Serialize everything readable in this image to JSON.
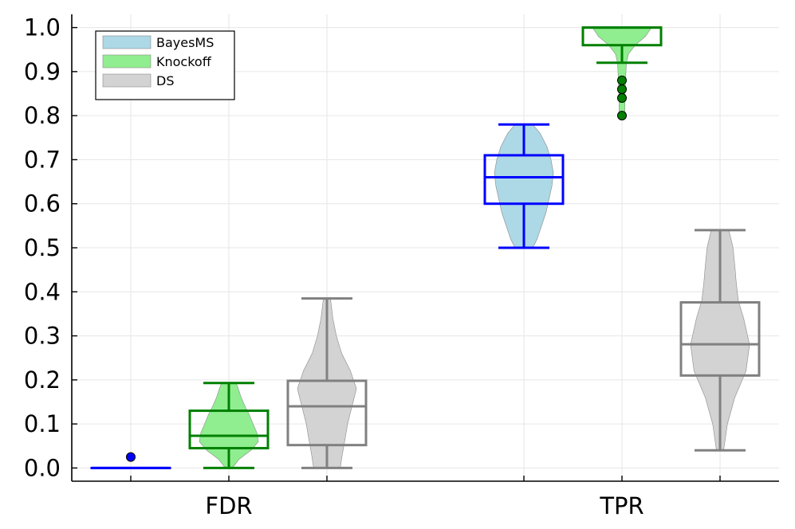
{
  "chart_data": {
    "type": "box-violin",
    "title": "",
    "xlabel": "",
    "ylabel": "",
    "categories": [
      "FDR",
      "TPR"
    ],
    "ylim": [
      -0.03,
      1.03
    ],
    "yticks": [
      "0.0",
      "0.1",
      "0.2",
      "0.3",
      "0.4",
      "0.5",
      "0.6",
      "0.7",
      "0.8",
      "0.9",
      "1.0"
    ],
    "grid": true,
    "legend_position": "top-left",
    "series": [
      {
        "name": "BayesMS",
        "fill_color": "#add8e6",
        "box_color": "#0000ff",
        "groups": [
          {
            "category": "FDR",
            "min": 0.0,
            "q1": 0.0,
            "median": 0.0,
            "q3": 0.0,
            "max": 0.0,
            "outliers": [
              0.025
            ],
            "violin": [
              [
                0.0,
                0.0
              ]
            ]
          },
          {
            "category": "TPR",
            "min": 0.5,
            "q1": 0.6,
            "median": 0.66,
            "q3": 0.71,
            "max": 0.78,
            "outliers": [],
            "violin": [
              [
                0.5,
                0.3
              ],
              [
                0.52,
                0.45
              ],
              [
                0.55,
                0.6
              ],
              [
                0.58,
                0.75
              ],
              [
                0.61,
                0.85
              ],
              [
                0.64,
                0.95
              ],
              [
                0.67,
                1.0
              ],
              [
                0.7,
                0.92
              ],
              [
                0.73,
                0.78
              ],
              [
                0.76,
                0.55
              ],
              [
                0.78,
                0.3
              ]
            ]
          }
        ]
      },
      {
        "name": "Knockoff",
        "fill_color": "#90ee90",
        "box_color": "#008000",
        "groups": [
          {
            "category": "FDR",
            "min": 0.0,
            "q1": 0.045,
            "median": 0.073,
            "q3": 0.13,
            "max": 0.193,
            "outliers": [],
            "violin": [
              [
                0.0,
                0.12
              ],
              [
                0.02,
                0.35
              ],
              [
                0.04,
                0.75
              ],
              [
                0.06,
                1.0
              ],
              [
                0.08,
                0.95
              ],
              [
                0.1,
                0.82
              ],
              [
                0.12,
                0.7
              ],
              [
                0.14,
                0.55
              ],
              [
                0.16,
                0.42
              ],
              [
                0.18,
                0.32
              ],
              [
                0.193,
                0.25
              ]
            ]
          },
          {
            "category": "TPR",
            "min": 0.92,
            "q1": 0.96,
            "median": 1.0,
            "q3": 1.0,
            "max": 1.0,
            "outliers": [
              0.8,
              0.84,
              0.86,
              0.88
            ],
            "violin": [
              [
                0.8,
                0.1
              ],
              [
                0.84,
                0.1
              ],
              [
                0.88,
                0.12
              ],
              [
                0.92,
                0.15
              ],
              [
                0.94,
                0.22
              ],
              [
                0.96,
                0.45
              ],
              [
                0.98,
                0.8
              ],
              [
                1.0,
                1.0
              ]
            ]
          }
        ]
      },
      {
        "name": "DS",
        "fill_color": "#d3d3d3",
        "box_color": "#808080",
        "groups": [
          {
            "category": "FDR",
            "min": 0.0,
            "q1": 0.052,
            "median": 0.14,
            "q3": 0.198,
            "max": 0.385,
            "outliers": [],
            "violin": [
              [
                0.0,
                0.45
              ],
              [
                0.03,
                0.52
              ],
              [
                0.06,
                0.6
              ],
              [
                0.1,
                0.7
              ],
              [
                0.14,
                0.85
              ],
              [
                0.18,
                1.0
              ],
              [
                0.22,
                0.8
              ],
              [
                0.26,
                0.5
              ],
              [
                0.3,
                0.32
              ],
              [
                0.34,
                0.2
              ],
              [
                0.385,
                0.12
              ]
            ]
          },
          {
            "category": "TPR",
            "min": 0.04,
            "q1": 0.21,
            "median": 0.281,
            "q3": 0.376,
            "max": 0.54,
            "outliers": [],
            "violin": [
              [
                0.04,
                0.12
              ],
              [
                0.1,
                0.25
              ],
              [
                0.16,
                0.5
              ],
              [
                0.22,
                0.88
              ],
              [
                0.28,
                1.0
              ],
              [
                0.34,
                0.8
              ],
              [
                0.38,
                0.62
              ],
              [
                0.42,
                0.55
              ],
              [
                0.46,
                0.5
              ],
              [
                0.5,
                0.44
              ],
              [
                0.54,
                0.3
              ]
            ]
          }
        ]
      }
    ]
  }
}
